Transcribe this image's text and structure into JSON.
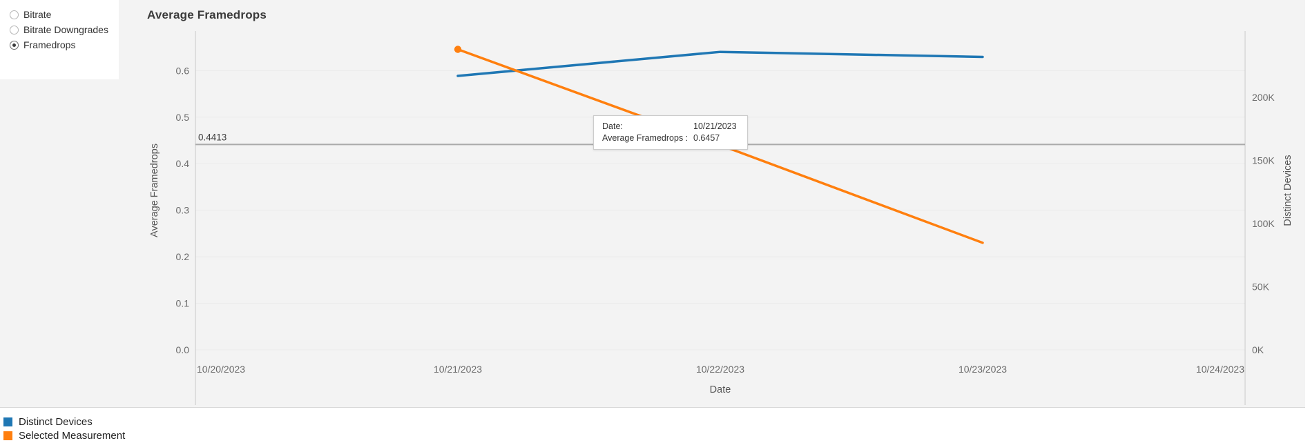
{
  "title": "Average Framedrops",
  "controls": {
    "options": [
      {
        "label": "Bitrate",
        "selected": false
      },
      {
        "label": "Bitrate Downgrades",
        "selected": false
      },
      {
        "label": "Framedrops",
        "selected": true
      }
    ]
  },
  "tooltip": {
    "rows": [
      {
        "label": "Date:",
        "value": "10/21/2023"
      },
      {
        "label": "Average Framedrops :",
        "value": "0.6457"
      }
    ]
  },
  "legend": {
    "position": "bottom-left",
    "items": [
      {
        "label": "Distinct Devices",
        "color": "#1F77B4"
      },
      {
        "label": "Selected Measurement",
        "color": "#FF7F0E"
      }
    ]
  },
  "chart_data": {
    "type": "line",
    "title": "Average Framedrops",
    "x": [
      "10/21/2023",
      "10/22/2023",
      "10/23/2023"
    ],
    "x_axis": {
      "title": "Date",
      "ticks": [
        "10/20/2023",
        "10/21/2023",
        "10/22/2023",
        "10/23/2023",
        "10/24/2023"
      ]
    },
    "y_left": {
      "title": "Average Framedrops",
      "ticks": [
        0.0,
        0.1,
        0.2,
        0.3,
        0.4,
        0.5,
        0.6
      ],
      "range": [
        0,
        0.685
      ],
      "grid": true
    },
    "y_right": {
      "title": "Distinct Devices",
      "ticks": [
        {
          "label": "0K",
          "value": 0
        },
        {
          "label": "50K",
          "value": 50000
        },
        {
          "label": "100K",
          "value": 100000
        },
        {
          "label": "150K",
          "value": 150000
        },
        {
          "label": "200K",
          "value": 200000
        }
      ],
      "range": [
        0,
        252500
      ]
    },
    "series": [
      {
        "name": "Distinct Devices",
        "axis": "right",
        "color": "#1F77B4",
        "values": [
          217000,
          236000,
          232000
        ]
      },
      {
        "name": "Selected Measurement",
        "axis": "left",
        "color": "#FF7F0E",
        "values": [
          0.6457,
          0.44,
          0.23
        ],
        "hover_point": {
          "x": "10/21/2023",
          "value": 0.6457
        }
      }
    ],
    "reference_line": {
      "value": 0.4413,
      "label": "0.4413",
      "color": "#a9a9a9"
    }
  }
}
